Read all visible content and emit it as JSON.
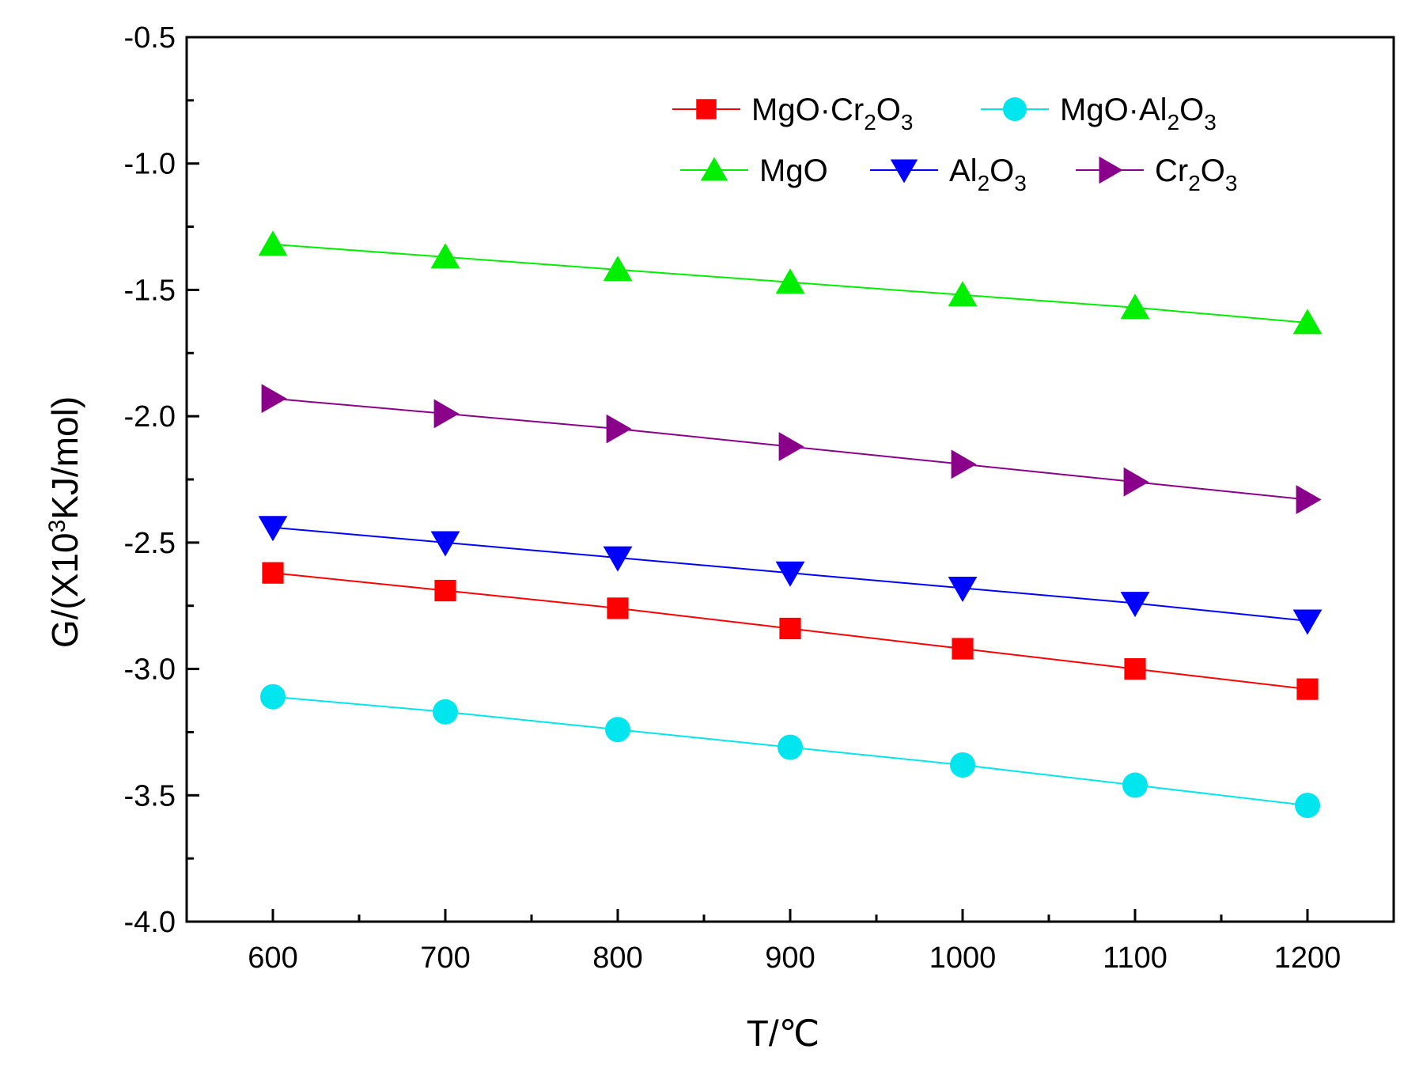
{
  "chart_data": {
    "type": "line",
    "title": "",
    "xlabel": "T/℃",
    "ylabel_parts": {
      "prefix": "G/(X10",
      "superscript": "3",
      "suffix": "KJ/mol)"
    },
    "x": [
      600,
      700,
      800,
      900,
      1000,
      1100,
      1200
    ],
    "xlim": [
      550,
      1250
    ],
    "ylim": [
      -4.0,
      -0.5
    ],
    "xticks": [
      600,
      700,
      800,
      900,
      1000,
      1100,
      1200
    ],
    "xtick_labels": [
      "600",
      "700",
      "800",
      "900",
      "1000",
      "1100",
      "1200"
    ],
    "yticks": [
      -4.0,
      -3.5,
      -3.0,
      -2.5,
      -2.0,
      -1.5,
      -1.0,
      -0.5
    ],
    "ytick_labels": [
      "-4.0",
      "-3.5",
      "-3.0",
      "-2.5",
      "-2.0",
      "-1.5",
      "-1.0",
      "-0.5"
    ],
    "grid": false,
    "legend_position": "top-right",
    "series": [
      {
        "name": "MgO·Cr2O3",
        "label_parts": [
          [
            "MgO·Cr",
            false
          ],
          [
            "2",
            true
          ],
          [
            "O",
            false
          ],
          [
            "3",
            true
          ]
        ],
        "color": "#ff0000",
        "marker": "square",
        "values": [
          -2.62,
          -2.69,
          -2.76,
          -2.84,
          -2.92,
          -3.0,
          -3.08
        ]
      },
      {
        "name": "MgO·Al2O3",
        "label_parts": [
          [
            "MgO·Al",
            false
          ],
          [
            "2",
            true
          ],
          [
            "O",
            false
          ],
          [
            "3",
            true
          ]
        ],
        "color": "#00e5ee",
        "marker": "circle",
        "values": [
          -3.11,
          -3.17,
          -3.24,
          -3.31,
          -3.38,
          -3.46,
          -3.54
        ]
      },
      {
        "name": "MgO",
        "label_parts": [
          [
            "MgO",
            false
          ]
        ],
        "color": "#00ee00",
        "marker": "triangle-up",
        "values": [
          -1.32,
          -1.37,
          -1.42,
          -1.47,
          -1.52,
          -1.57,
          -1.63
        ]
      },
      {
        "name": "Al2O3",
        "label_parts": [
          [
            "Al",
            false
          ],
          [
            "2",
            true
          ],
          [
            "O",
            false
          ],
          [
            "3",
            true
          ]
        ],
        "color": "#0000ff",
        "marker": "triangle-down",
        "values": [
          -2.44,
          -2.5,
          -2.56,
          -2.62,
          -2.68,
          -2.74,
          -2.81
        ]
      },
      {
        "name": "Cr2O3",
        "label_parts": [
          [
            "Cr",
            false
          ],
          [
            "2",
            true
          ],
          [
            "O",
            false
          ],
          [
            "3",
            true
          ]
        ],
        "color": "#8b008b",
        "marker": "triangle-right",
        "values": [
          -1.93,
          -1.99,
          -2.05,
          -2.12,
          -2.19,
          -2.26,
          -2.33
        ]
      }
    ]
  }
}
